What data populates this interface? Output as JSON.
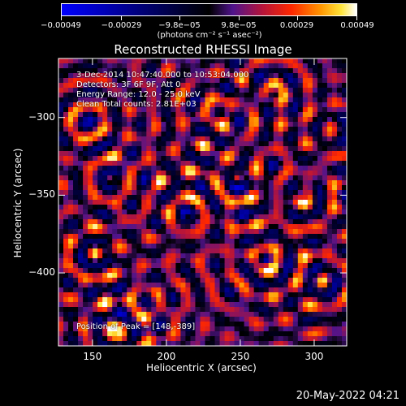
{
  "chart_data": {
    "type": "heatmap",
    "title": "Reconstructed RHESSI Image",
    "xlabel": "Heliocentric X (arcsec)",
    "ylabel": "Heliocentric Y (arcsec)",
    "xlim": [
      127,
      322
    ],
    "ylim": [
      -447,
      -262
    ],
    "xticks": [
      150,
      200,
      250,
      300
    ],
    "xtick_labels": [
      "150",
      "200",
      "250",
      "300"
    ],
    "yticks": [
      -300,
      -350,
      -400
    ],
    "ytick_labels": [
      "−300",
      "−350",
      "−400"
    ],
    "colorbar": {
      "range": [
        -0.00049,
        0.00049
      ],
      "ticks": [
        -0.00049,
        -0.00029,
        -9.8e-05,
        9.8e-05,
        0.00029,
        0.00049
      ],
      "tick_labels": [
        "−0.00049",
        "−0.00029",
        "−9.8e−05",
        "9.8e−05",
        "0.00029",
        "0.00049"
      ],
      "units": "(photons cm⁻² s⁻¹ asec⁻²)"
    },
    "peak": [
      148,
      -389
    ],
    "annotations": [
      "3-Dec-2014 10:47:40.000 to 10:53:04.000",
      "Detectors: 3F 6F 9F, Att 0",
      "Energy Range: 12.0 - 25.0 keV",
      "Clean     Total counts: 2.81E+03"
    ],
    "peak_label": "Position of Peak = [148,-389]",
    "grid": false
  },
  "footer": {
    "timestamp": "20-May-2022 04:21"
  }
}
